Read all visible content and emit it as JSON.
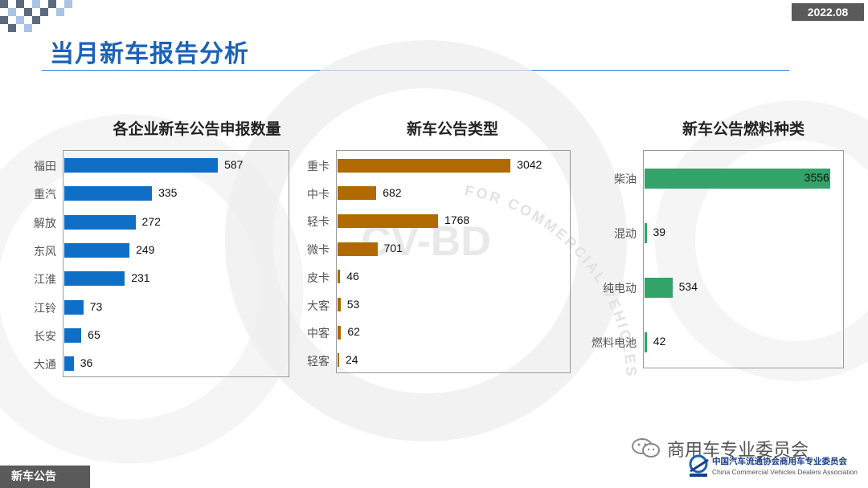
{
  "header": {
    "date": "2022.08",
    "page_title": "当月新车报告分析"
  },
  "footer": {
    "section_tag": "新车公告",
    "wechat_account": "商用车专业委员会",
    "association_cn": "中国汽车流通协会商用车专业委员会",
    "association_en": "China Commercial Vehicles Dealers Association"
  },
  "watermark": {
    "center_text": "CV-BD",
    "ring_text": "FOR COMMERCIAL VEHICLES"
  },
  "colors": {
    "title_blue": "#1b62b5",
    "bar_blue": "#0f6fc6",
    "bar_orange": "#b06a00",
    "bar_green": "#33a36a"
  },
  "chart_data": [
    {
      "type": "bar",
      "orientation": "horizontal",
      "title": "各企业新车公告申报数量",
      "categories": [
        "福田",
        "重汽",
        "解放",
        "东风",
        "江淮",
        "江铃",
        "长安",
        "大通"
      ],
      "values": [
        587,
        335,
        272,
        249,
        231,
        73,
        65,
        36
      ],
      "xlim": [
        0,
        860
      ],
      "grid": false,
      "legend": "none",
      "color": "#0f6fc6"
    },
    {
      "type": "bar",
      "orientation": "horizontal",
      "title": "新车公告类型",
      "categories": [
        "重卡",
        "中卡",
        "轻卡",
        "微卡",
        "皮卡",
        "大客",
        "中客",
        "轻客"
      ],
      "values": [
        3042,
        682,
        1768,
        701,
        46,
        53,
        62,
        24
      ],
      "xlim": [
        0,
        4100
      ],
      "grid": false,
      "legend": "none",
      "color": "#b06a00"
    },
    {
      "type": "bar",
      "orientation": "horizontal",
      "title": "新车公告燃料种类",
      "categories": [
        "柴油",
        "混动",
        "纯电动",
        "燃料电池"
      ],
      "values": [
        3556,
        39,
        534,
        42
      ],
      "xlim": [
        0,
        3700
      ],
      "grid": false,
      "legend": "none",
      "color": "#33a36a"
    }
  ]
}
